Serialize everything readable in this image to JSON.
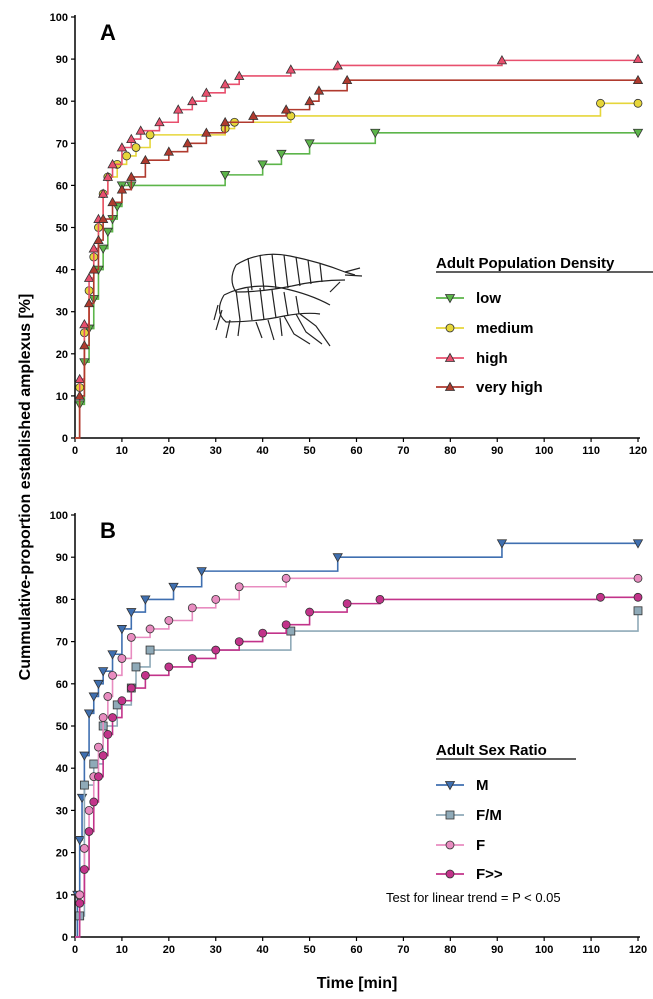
{
  "y_axis_title": "Cummulative-proportion established amplexus [%]",
  "x_axis_title": "Time [min]",
  "chart_data": [
    {
      "type": "line",
      "step": true,
      "panel": "A",
      "xlim": [
        0,
        120
      ],
      "ylim": [
        0,
        100
      ],
      "x_ticks": [
        0,
        10,
        20,
        30,
        40,
        50,
        60,
        70,
        80,
        90,
        100,
        110,
        120
      ],
      "y_ticks": [
        0,
        10,
        20,
        30,
        40,
        50,
        60,
        70,
        80,
        90,
        100
      ],
      "legend_title": "Adult Population Density",
      "legend_position": "right",
      "series": [
        {
          "name": "low",
          "color": "#5cb54a",
          "marker": "triangle-down",
          "x": [
            0,
            1,
            2,
            3,
            4,
            5,
            6,
            7,
            8,
            9,
            10,
            12,
            32,
            40,
            44,
            50,
            64,
            120
          ],
          "y": [
            0,
            8,
            18,
            26,
            33,
            40,
            45,
            49,
            52,
            55,
            60,
            60,
            62.5,
            65,
            67.5,
            70,
            72.5,
            72.5
          ]
        },
        {
          "name": "medium",
          "color": "#e6d63a",
          "marker": "circle",
          "x": [
            0,
            1,
            2,
            3,
            4,
            5,
            6,
            7,
            9,
            11,
            13,
            16,
            32,
            34,
            46,
            112,
            120
          ],
          "y": [
            0,
            12,
            25,
            35,
            43,
            50,
            58,
            62,
            65,
            67,
            69,
            72,
            73.5,
            75,
            76.5,
            79.5,
            79.5
          ]
        },
        {
          "name": "high",
          "color": "#e8506e",
          "marker": "triangle-up",
          "x": [
            0,
            1,
            2,
            3,
            4,
            5,
            6,
            7,
            8,
            10,
            12,
            14,
            18,
            22,
            25,
            28,
            32,
            35,
            46,
            56,
            91,
            120
          ],
          "y": [
            0,
            14,
            27,
            38,
            45,
            52,
            58,
            62,
            65,
            69,
            71,
            73,
            75,
            78,
            80,
            82,
            84,
            86,
            87.5,
            88.5,
            89.7,
            90
          ]
        },
        {
          "name": "very high",
          "color": "#b03a2e",
          "marker": "triangle-up",
          "x": [
            0,
            1,
            2,
            3,
            4,
            5,
            6,
            8,
            10,
            12,
            15,
            20,
            24,
            28,
            32,
            38,
            45,
            50,
            52,
            58,
            120
          ],
          "y": [
            0,
            10,
            22,
            32,
            40,
            47,
            52,
            56,
            59,
            62,
            66,
            68,
            70,
            72.5,
            75,
            76.5,
            78,
            80,
            82.5,
            85,
            85
          ]
        }
      ]
    },
    {
      "type": "line",
      "step": true,
      "panel": "B",
      "xlim": [
        0,
        120
      ],
      "ylim": [
        0,
        100
      ],
      "x_ticks": [
        0,
        10,
        20,
        30,
        40,
        50,
        60,
        70,
        80,
        90,
        100,
        110,
        120
      ],
      "y_ticks": [
        0,
        10,
        20,
        30,
        40,
        50,
        60,
        70,
        80,
        90,
        100
      ],
      "legend_title": "Adult Sex Ratio",
      "legend_position": "bottom-right",
      "annotation": "Test for linear trend  = P < 0.05",
      "series": [
        {
          "name": "M",
          "color": "#3f6fb0",
          "marker": "triangle-down",
          "x": [
            0,
            0.5,
            1,
            1.5,
            2,
            3,
            4,
            5,
            6,
            8,
            10,
            12,
            15,
            21,
            27,
            56,
            91,
            120
          ],
          "y": [
            0,
            10,
            23,
            33,
            43,
            53,
            57,
            60,
            63,
            67,
            73,
            77,
            80,
            83,
            86.7,
            90,
            93.3,
            93.3
          ]
        },
        {
          "name": "F/M",
          "color": "#8faab8",
          "marker": "square",
          "x": [
            0,
            1,
            2,
            4,
            6,
            9,
            12,
            13,
            16,
            46,
            120
          ],
          "y": [
            0,
            5,
            36,
            41,
            50,
            55,
            59,
            64,
            68,
            72.5,
            77.3
          ]
        },
        {
          "name": "F",
          "color": "#e88cc0",
          "marker": "circle",
          "x": [
            0,
            1,
            2,
            3,
            4,
            5,
            6,
            7,
            8,
            10,
            12,
            16,
            20,
            25,
            30,
            35,
            45,
            120
          ],
          "y": [
            0,
            10,
            21,
            30,
            38,
            45,
            52,
            57,
            62,
            66,
            71,
            73,
            75,
            78,
            80,
            83,
            85,
            85
          ]
        },
        {
          "name": "F>>",
          "color": "#c2338a",
          "marker": "circle",
          "x": [
            0,
            1,
            2,
            3,
            4,
            5,
            6,
            7,
            8,
            10,
            12,
            15,
            20,
            25,
            30,
            35,
            40,
            45,
            50,
            58,
            65,
            112,
            120
          ],
          "y": [
            0,
            8,
            16,
            25,
            32,
            38,
            43,
            48,
            52,
            56,
            59,
            62,
            64,
            66,
            68,
            70,
            72,
            74,
            77,
            79,
            80,
            80.5,
            80.5
          ]
        }
      ]
    }
  ]
}
